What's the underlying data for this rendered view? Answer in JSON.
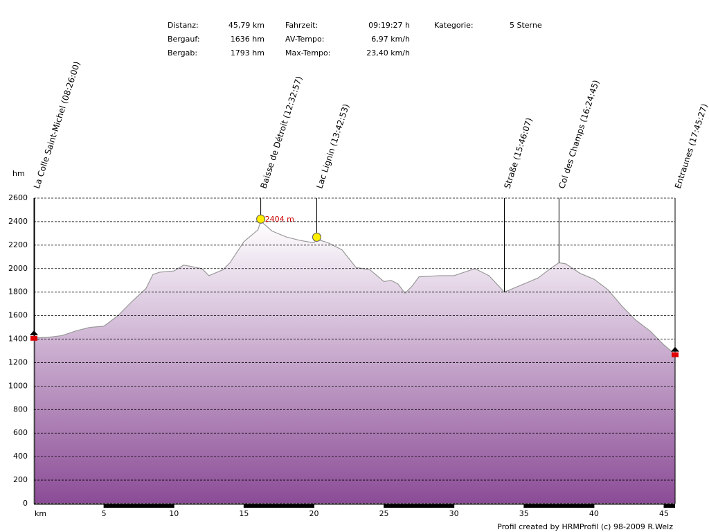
{
  "header": {
    "stats": [
      [
        [
          "Distanz:",
          "45,79 km"
        ],
        [
          "Bergauf:",
          "1636 hm"
        ],
        [
          "Bergab:",
          "1793 hm"
        ]
      ],
      [
        [
          "Fahrzeit:",
          "09:19:27 h"
        ],
        [
          "AV-Tempo:",
          "6,97 km/h"
        ],
        [
          "Max-Tempo:",
          "23,40 km/h"
        ]
      ],
      [
        [
          "Kategorie:",
          "5 Sterne"
        ]
      ]
    ]
  },
  "chart_data": {
    "type": "area",
    "x_label": "km",
    "y_label": "hm",
    "x": [
      0,
      1,
      2,
      3,
      4,
      5,
      6,
      7,
      8,
      8.5,
      9,
      10,
      10.7,
      12,
      12.5,
      13.5,
      14,
      15,
      16,
      16.2,
      17,
      18,
      19,
      20,
      20.2,
      21,
      22,
      23,
      24,
      25,
      25.5,
      26,
      26.5,
      27,
      27.5,
      29,
      30,
      31,
      31.5,
      32.5,
      33.6,
      35,
      36,
      37,
      37.5,
      38,
      39,
      40,
      41,
      42,
      43,
      44,
      45,
      45.79
    ],
    "values": [
      1410,
      1415,
      1430,
      1470,
      1500,
      1510,
      1600,
      1720,
      1830,
      1950,
      1970,
      1980,
      2030,
      2000,
      1940,
      1990,
      2050,
      2230,
      2330,
      2404,
      2320,
      2270,
      2240,
      2220,
      2250,
      2220,
      2160,
      2010,
      1990,
      1890,
      1900,
      1870,
      1790,
      1850,
      1930,
      1940,
      1940,
      1980,
      2000,
      1940,
      1800,
      1870,
      1920,
      2010,
      2050,
      2040,
      1960,
      1910,
      1820,
      1680,
      1560,
      1470,
      1350,
      1270
    ],
    "color": "#8b4c96",
    "line_color": "#999999",
    "xlim": [
      0,
      45.79
    ],
    "ylim": [
      0,
      2600
    ],
    "xticks": [
      5,
      10,
      15,
      20,
      25,
      30,
      35,
      40,
      45
    ],
    "yticks": [
      0,
      200,
      400,
      600,
      800,
      1000,
      1200,
      1400,
      1600,
      1800,
      2000,
      2200,
      2400,
      2600
    ],
    "grid": true,
    "peak": {
      "x": 16.2,
      "value": 2404,
      "label": "2404 m"
    },
    "waypoints": [
      {
        "label": "La Colle Saint-Michel (08:26:00)",
        "x": 0,
        "icon": "flag"
      },
      {
        "label": "Baisse de Détroit (12:32:57)",
        "x": 16.2,
        "icon": "smiley"
      },
      {
        "label": "Lac Lignin (13:42:53)",
        "x": 20.2,
        "icon": "smiley"
      },
      {
        "label": "Straße (15:46:07)",
        "x": 33.6
      },
      {
        "label": "Col des Champs (16:24:45)",
        "x": 37.5
      },
      {
        "label": "Entraunes (17:45:27)",
        "x": 45.79,
        "icon": "flag"
      }
    ]
  },
  "footer": "Profil created by HRMProfil (c) 98-2009 R.Welz"
}
